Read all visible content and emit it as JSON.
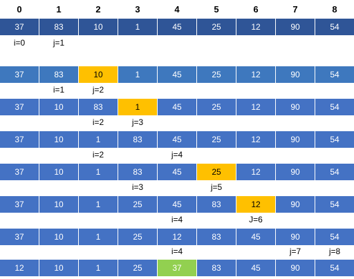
{
  "header": [
    "0",
    "1",
    "2",
    "3",
    "4",
    "5",
    "6",
    "7",
    "8"
  ],
  "colors": {
    "first_row": "#2F5597",
    "row": "#4472C4",
    "row_alt": "#3E78BE",
    "highlight_orange": "#FFC000",
    "highlight_green": "#92D050"
  },
  "rows": [
    {
      "values": [
        "37",
        "83",
        "10",
        "1",
        "45",
        "25",
        "12",
        "90",
        "54"
      ],
      "highlight": null,
      "labels": [
        {
          "col": 0,
          "text": "i=0"
        },
        {
          "col": 1,
          "text": "j=1"
        }
      ]
    },
    {
      "values": [
        "37",
        "83",
        "10",
        "1",
        "45",
        "25",
        "12",
        "90",
        "54"
      ],
      "highlight": {
        "col": 2,
        "color": "orange"
      },
      "labels": [
        {
          "col": 1,
          "text": "i=1"
        },
        {
          "col": 2,
          "text": "j=2"
        }
      ]
    },
    {
      "values": [
        "37",
        "10",
        "83",
        "1",
        "45",
        "25",
        "12",
        "90",
        "54"
      ],
      "highlight": {
        "col": 3,
        "color": "orange"
      },
      "labels": [
        {
          "col": 2,
          "text": "i=2"
        },
        {
          "col": 3,
          "text": "j=3"
        }
      ]
    },
    {
      "values": [
        "37",
        "10",
        "1",
        "83",
        "45",
        "25",
        "12",
        "90",
        "54"
      ],
      "highlight": null,
      "labels": [
        {
          "col": 2,
          "text": "i=2"
        },
        {
          "col": 4,
          "text": "j=4"
        }
      ]
    },
    {
      "values": [
        "37",
        "10",
        "1",
        "83",
        "45",
        "25",
        "12",
        "90",
        "54"
      ],
      "highlight": {
        "col": 5,
        "color": "orange"
      },
      "labels": [
        {
          "col": 3,
          "text": "i=3"
        },
        {
          "col": 5,
          "text": "j=5"
        }
      ]
    },
    {
      "values": [
        "37",
        "10",
        "1",
        "25",
        "45",
        "83",
        "12",
        "90",
        "54"
      ],
      "highlight": {
        "col": 6,
        "color": "orange"
      },
      "labels": [
        {
          "col": 4,
          "text": "i=4"
        },
        {
          "col": 6,
          "text": "J=6"
        }
      ]
    },
    {
      "values": [
        "37",
        "10",
        "1",
        "25",
        "12",
        "83",
        "45",
        "90",
        "54"
      ],
      "highlight": null,
      "labels": [
        {
          "col": 4,
          "text": "i=4"
        },
        {
          "col": 7,
          "text": "j=7"
        },
        {
          "col": 8,
          "text": "j=8"
        }
      ]
    },
    {
      "values": [
        "12",
        "10",
        "1",
        "25",
        "37",
        "83",
        "45",
        "90",
        "54"
      ],
      "highlight": {
        "col": 4,
        "color": "green"
      },
      "labels": []
    }
  ]
}
